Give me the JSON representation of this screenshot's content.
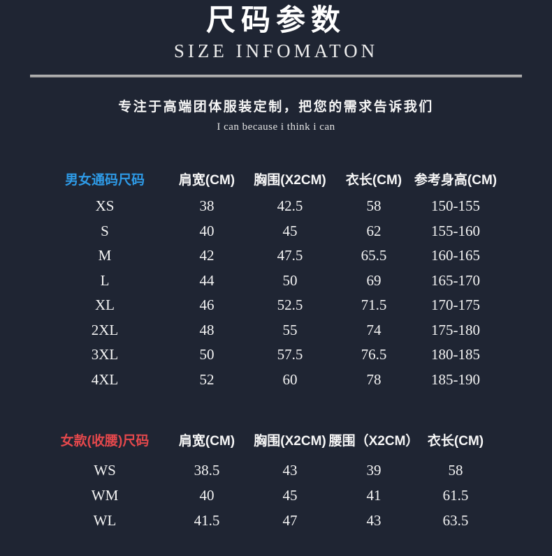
{
  "header": {
    "title_cn": "尺码参数",
    "title_en": "SIZE INFOMATON",
    "tagline": "专注于高端团体服装定制，把您的需求告诉我们",
    "slogan": "I can because i think i can"
  },
  "colors": {
    "background": "#1f2533",
    "accent_blue": "#2e9ae6",
    "accent_red": "#e4484c",
    "divider_gray": "#a6a6a6",
    "text_white": "#ffffff"
  },
  "unisex_table": {
    "label": "男女通码尺码",
    "columns": [
      "肩宽(CM)",
      "胸围(X2CM)",
      "衣长(CM)",
      "参考身高(CM)"
    ],
    "rows": [
      {
        "size": "XS",
        "values": [
          "38",
          "42.5",
          "58",
          "150-155"
        ]
      },
      {
        "size": "S",
        "values": [
          "40",
          "45",
          "62",
          "155-160"
        ]
      },
      {
        "size": "M",
        "values": [
          "42",
          "47.5",
          "65.5",
          "160-165"
        ]
      },
      {
        "size": "L",
        "values": [
          "44",
          "50",
          "69",
          "165-170"
        ]
      },
      {
        "size": "XL",
        "values": [
          "46",
          "52.5",
          "71.5",
          "170-175"
        ]
      },
      {
        "size": "2XL",
        "values": [
          "48",
          "55",
          "74",
          "175-180"
        ]
      },
      {
        "size": "3XL",
        "values": [
          "50",
          "57.5",
          "76.5",
          "180-185"
        ]
      },
      {
        "size": "4XL",
        "values": [
          "52",
          "60",
          "78",
          "185-190"
        ]
      }
    ]
  },
  "women_table": {
    "label": "女款(收腰)尺码",
    "columns": [
      "肩宽(CM)",
      "胸围(X2CM)",
      "腰围（X2CM）",
      "衣长(CM)"
    ],
    "rows": [
      {
        "size": "WS",
        "values": [
          "38.5",
          "43",
          "39",
          "58"
        ]
      },
      {
        "size": "WM",
        "values": [
          "40",
          "45",
          "41",
          "61.5"
        ]
      },
      {
        "size": "WL",
        "values": [
          "41.5",
          "47",
          "43",
          "63.5"
        ]
      }
    ]
  }
}
